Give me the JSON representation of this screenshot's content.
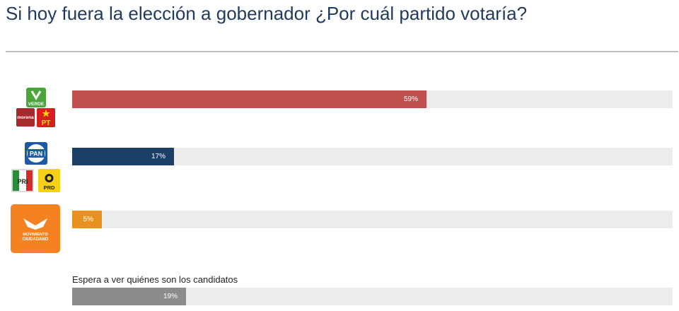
{
  "title": "Si hoy fuera la elección a gobernador ¿Por cuál partido votaría?",
  "logos": {
    "verde": "VERDE",
    "morena": "morena",
    "pt": "PT",
    "pan": "PAN",
    "pri": "PRI",
    "prd": "PRD",
    "mc_line1": "MOVIMIENTO",
    "mc_line2": "CIUDADANO"
  },
  "chart_data": {
    "type": "bar",
    "orientation": "horizontal",
    "xlim": [
      0,
      100
    ],
    "categories": [
      "VERDE / morena / PT",
      "PAN / PRI / PRD",
      "MOVIMIENTO CIUDADANO",
      "Espera a ver quiénes son los candidatos"
    ],
    "values": [
      59,
      17,
      5,
      19
    ],
    "labels": [
      "59%",
      "17%",
      "5%",
      "19%"
    ],
    "colors": [
      "#c0504d",
      "#1b3f66",
      "#e8911e",
      "#8c8c8c"
    ],
    "visible_category_label": "Espera a ver quiénes son los candidatos"
  }
}
